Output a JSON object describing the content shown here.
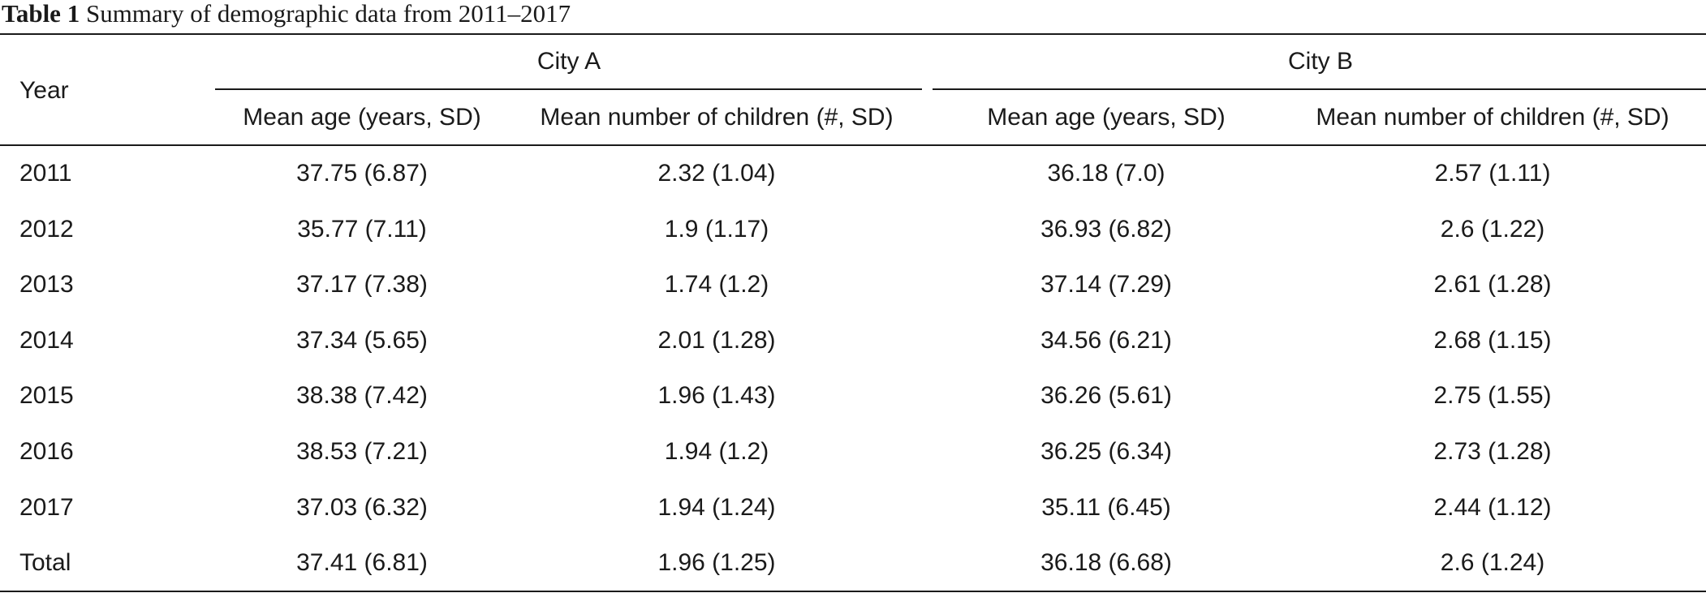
{
  "caption": {
    "label": "Table 1",
    "text": "Summary of demographic data from 2011–2017"
  },
  "table": {
    "row_header": "Year",
    "groups": [
      {
        "name": "City A",
        "columns": [
          "Mean age (years, SD)",
          "Mean number of children (#, SD)"
        ]
      },
      {
        "name": "City B",
        "columns": [
          "Mean age (years, SD)",
          "Mean number of children (#, SD)"
        ]
      }
    ],
    "rows": [
      {
        "year": "2011",
        "cells": [
          "37.75 (6.87)",
          "2.32 (1.04)",
          "36.18 (7.0)",
          "2.57 (1.11)"
        ]
      },
      {
        "year": "2012",
        "cells": [
          "35.77 (7.11)",
          "1.9 (1.17)",
          "36.93 (6.82)",
          "2.6 (1.22)"
        ]
      },
      {
        "year": "2013",
        "cells": [
          "37.17 (7.38)",
          "1.74 (1.2)",
          "37.14 (7.29)",
          "2.61 (1.28)"
        ]
      },
      {
        "year": "2014",
        "cells": [
          "37.34 (5.65)",
          "2.01 (1.28)",
          "34.56 (6.21)",
          "2.68 (1.15)"
        ]
      },
      {
        "year": "2015",
        "cells": [
          "38.38 (7.42)",
          "1.96 (1.43)",
          "36.26 (5.61)",
          "2.75 (1.55)"
        ]
      },
      {
        "year": "2016",
        "cells": [
          "38.53 (7.21)",
          "1.94 (1.2)",
          "36.25 (6.34)",
          "2.73 (1.28)"
        ]
      },
      {
        "year": "2017",
        "cells": [
          "37.03 (6.32)",
          "1.94 (1.24)",
          "35.11 (6.45)",
          "2.44 (1.12)"
        ]
      },
      {
        "year": "Total",
        "cells": [
          "37.41 (6.81)",
          "1.96 (1.25)",
          "36.18 (6.68)",
          "2.6 (1.24)"
        ]
      }
    ]
  }
}
